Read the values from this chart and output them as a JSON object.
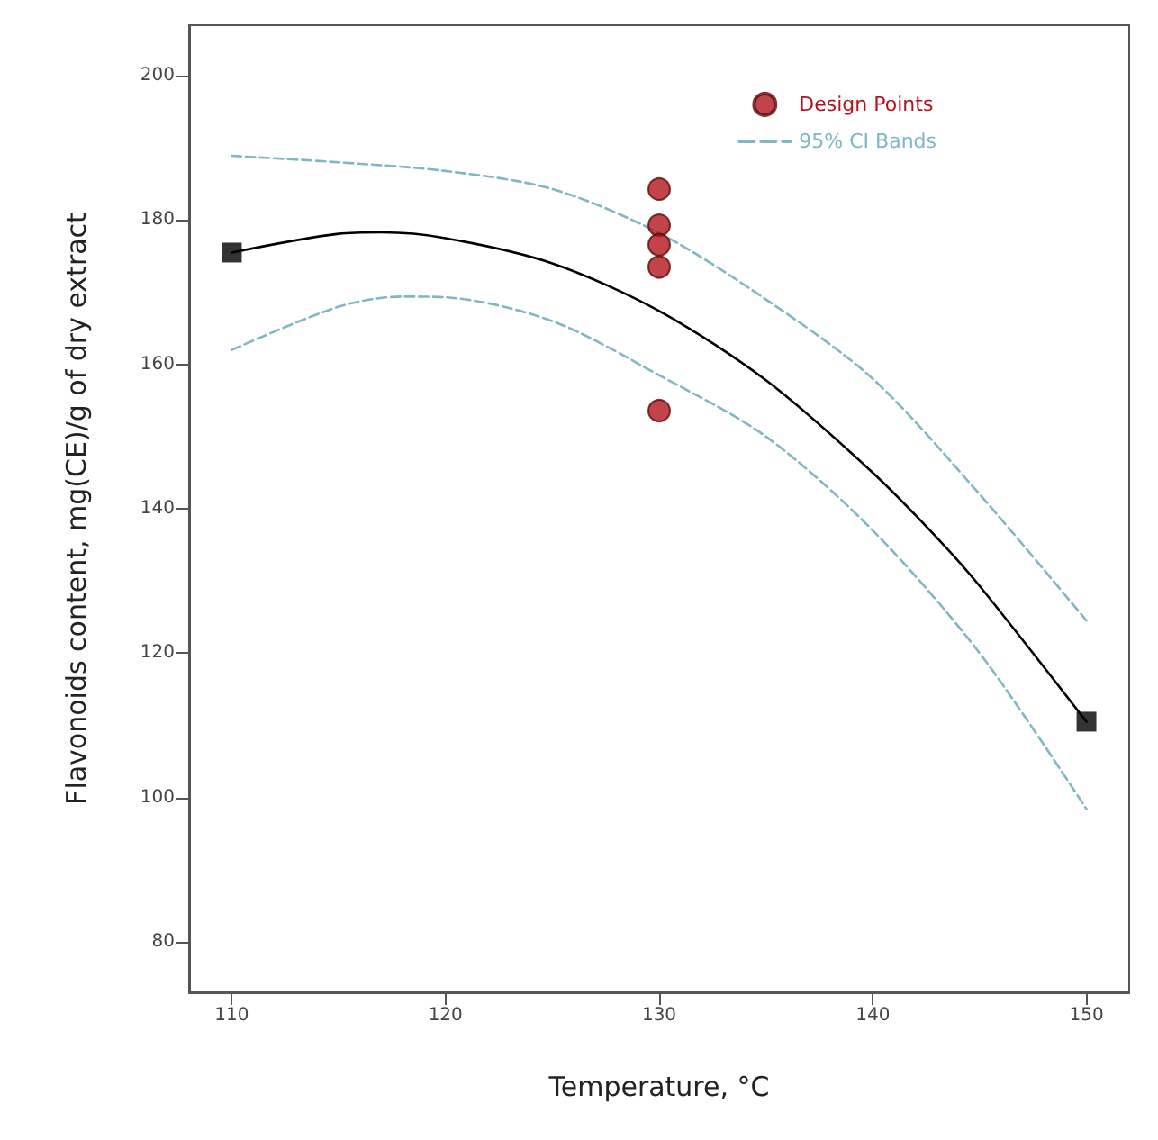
{
  "chart_data": {
    "type": "line",
    "xlabel": "Temperature, °C",
    "ylabel": "Flavonoids content, mg(CE)/g of dry extract",
    "xlim": [
      108,
      152
    ],
    "ylim": [
      73,
      207
    ],
    "xticks": [
      110,
      120,
      130,
      140,
      150
    ],
    "yticks": [
      80,
      100,
      120,
      140,
      160,
      180,
      200
    ],
    "grid": false,
    "legend": "top right",
    "series": [
      {
        "name": "Design Points",
        "type": "scatter",
        "marker": "circle",
        "color": "#b3141b",
        "x": [
          130,
          130,
          130,
          130,
          130
        ],
        "values": [
          184.3,
          179.3,
          176.6,
          173.5,
          153.6
        ]
      },
      {
        "name": "95% CI Bands",
        "line_style": "dashed",
        "marker": "none",
        "color": "#7fb7c4",
        "x": [
          110,
          115,
          120,
          125,
          130,
          135,
          140,
          145,
          150,
          null,
          110,
          115,
          118,
          120,
          125,
          130,
          135,
          140,
          145,
          150
        ],
        "values": [
          188.9,
          188,
          186.8,
          184.3,
          178.2,
          169,
          158,
          142,
          124.5,
          null,
          162,
          168,
          169.4,
          169.3,
          166,
          158.5,
          150,
          137,
          120,
          98.4
        ]
      },
      {
        "line_style": "solid",
        "marker": "none",
        "color": "#000000",
        "x": [
          110,
          115,
          117,
          120,
          125,
          130,
          135,
          140,
          143,
          145,
          150
        ],
        "values": [
          175.5,
          178.1,
          178.3,
          177.5,
          174,
          167.4,
          157.8,
          145,
          136,
          129.3,
          110.5
        ]
      },
      {
        "type": "scatter",
        "marker": "square",
        "color": "#000000",
        "x": [
          110,
          150
        ],
        "values": [
          175.5,
          110.5
        ]
      }
    ]
  }
}
